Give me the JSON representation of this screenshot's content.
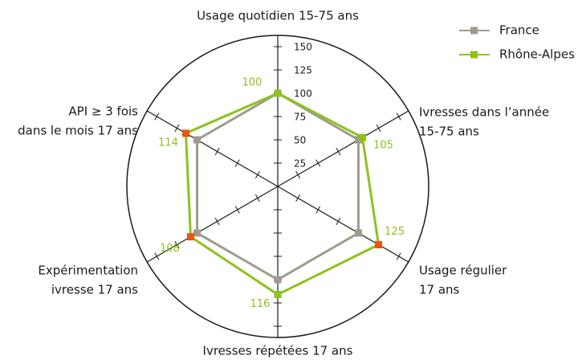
{
  "chart_data": {
    "type": "radar",
    "categories": [
      [
        "Usage quotidien 15-75 ans"
      ],
      [
        "Ivresses dans l’année",
        "15-75 ans"
      ],
      [
        "Usage régulier",
        "17 ans"
      ],
      [
        "Ivresses répétées 17 ans"
      ],
      [
        "Expérimentation",
        "ivresse 17 ans"
      ],
      [
        "API ≥ 3 fois",
        "dans le mois 17 ans"
      ]
    ],
    "series": [
      {
        "name": "France",
        "color": "#a09b8c",
        "values": [
          100,
          100,
          100,
          100,
          100,
          100
        ]
      },
      {
        "name": "Rhône-Alpes",
        "color": "#8dc21f",
        "values": [
          100,
          105,
          125,
          116,
          108,
          114
        ],
        "marker_colors": [
          "#8dc21f",
          "#8dc21f",
          "#e8560f",
          "#8dc21f",
          "#e8560f",
          "#e8560f"
        ],
        "data_labels": true
      }
    ],
    "ylim": [
      0,
      150
    ],
    "yticks": [
      25,
      50,
      75,
      100,
      125,
      150
    ],
    "legend": "top-right"
  }
}
